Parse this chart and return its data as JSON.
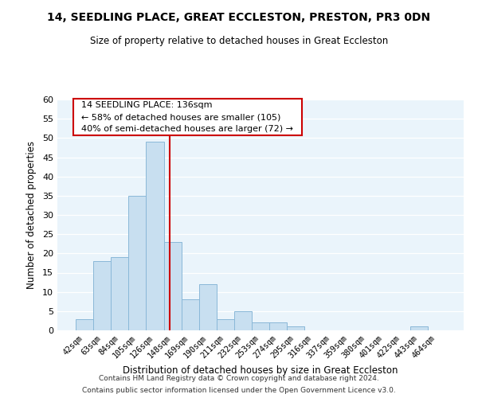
{
  "title": "14, SEEDLING PLACE, GREAT ECCLESTON, PRESTON, PR3 0DN",
  "subtitle": "Size of property relative to detached houses in Great Eccleston",
  "xlabel": "Distribution of detached houses by size in Great Eccleston",
  "ylabel": "Number of detached properties",
  "footer_line1": "Contains HM Land Registry data © Crown copyright and database right 2024.",
  "footer_line2": "Contains public sector information licensed under the Open Government Licence v3.0.",
  "bar_labels": [
    "42sqm",
    "63sqm",
    "84sqm",
    "105sqm",
    "126sqm",
    "148sqm",
    "169sqm",
    "190sqm",
    "211sqm",
    "232sqm",
    "253sqm",
    "274sqm",
    "295sqm",
    "316sqm",
    "337sqm",
    "359sqm",
    "380sqm",
    "401sqm",
    "422sqm",
    "443sqm",
    "464sqm"
  ],
  "bar_heights": [
    3,
    18,
    19,
    35,
    49,
    23,
    8,
    12,
    3,
    5,
    2,
    2,
    1,
    0,
    0,
    0,
    0,
    0,
    0,
    1,
    0
  ],
  "bar_color": "#c8dff0",
  "bar_edge_color": "#8ab8d8",
  "grid_color": "#c8dff0",
  "vline_x_index": 4.82,
  "vline_color": "#cc0000",
  "annotation_title": "14 SEEDLING PLACE: 136sqm",
  "annotation_line1": "← 58% of detached houses are smaller (105)",
  "annotation_line2": "40% of semi-detached houses are larger (72) →",
  "annotation_box_color": "#ffffff",
  "annotation_box_edge": "#cc0000",
  "ylim": [
    0,
    60
  ],
  "yticks": [
    0,
    5,
    10,
    15,
    20,
    25,
    30,
    35,
    40,
    45,
    50,
    55,
    60
  ]
}
